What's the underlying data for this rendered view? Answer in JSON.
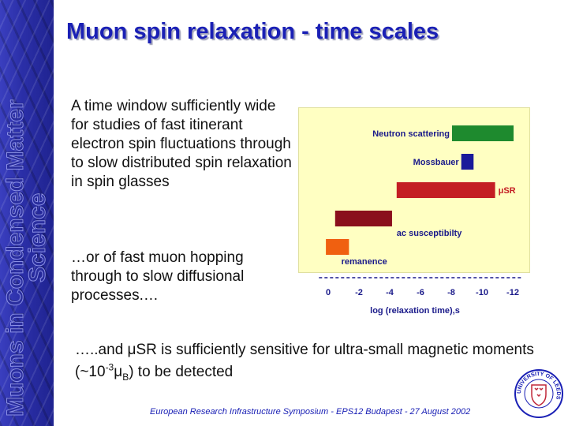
{
  "side_banner": {
    "line1": "Muons in Condensed Matter",
    "line2": "Science"
  },
  "title": "Muon spin relaxation - time scales",
  "paragraph1": "A time window sufficiently wide for studies of fast itinerant electron spin fluctuations through to slow distributed spin relaxation in spin glasses",
  "paragraph2": "…or of fast muon hopping through to slow diffusional processes.…",
  "paragraph3": {
    "prefix": "…..and μSR is sufficiently sensitive for ultra-small magnetic moments (~10",
    "superscript": "-3",
    "middle": "μ",
    "subscript": "B",
    "suffix": ") to be detected"
  },
  "footer": "European Research Infrastructure Symposium - EPS12 Budapest - 27 August 2002",
  "seal": {
    "text": "UNIVERSITY OF LEEDS",
    "colors": {
      "ring": "#1a20b5",
      "shield": "#c0283a"
    }
  },
  "chart_data": {
    "type": "bar",
    "orientation": "horizontal",
    "xlabel": "log (relaxation time),s",
    "xlim": [
      0,
      -12
    ],
    "ticks": [
      "0",
      "-2",
      "-4",
      "-6",
      "-8",
      "-10",
      "-12"
    ],
    "bars": [
      {
        "name": "Neutron scattering",
        "start": -8,
        "end": -12,
        "color": "#1e8a2e"
      },
      {
        "name": "Mossbauer",
        "start": -8.6,
        "end": -9.4,
        "color": "#1a1a9a"
      },
      {
        "name": "μSR",
        "start": -4.4,
        "end": -10.8,
        "color": "#c41e24"
      },
      {
        "name": "ac susceptibilty",
        "start": -0.4,
        "end": -4.1,
        "color": "#8a0f1c"
      },
      {
        "name": "remanence",
        "start": 0.2,
        "end": -1.3,
        "color": "#f06010"
      }
    ],
    "background": "#ffffc2"
  }
}
